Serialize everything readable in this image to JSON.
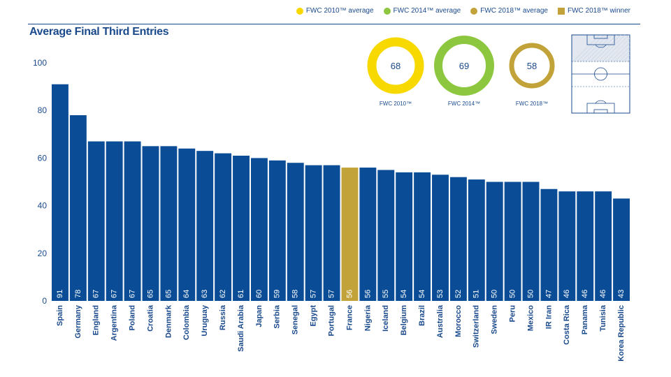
{
  "legend": [
    {
      "label": "FWC 2010™ average",
      "color": "#f7d900",
      "shape": "circle"
    },
    {
      "label": "FWC 2014™ average",
      "color": "#8dc63f",
      "shape": "circle"
    },
    {
      "label": "FWC 2018™ average",
      "color": "#c2a33a",
      "shape": "circle"
    },
    {
      "label": "FWC 2018™ winner",
      "color": "#c2a33a",
      "shape": "square"
    }
  ],
  "rings": [
    {
      "value": "68",
      "label": "FWC 2010™",
      "color": "#f7d900"
    },
    {
      "value": "69",
      "label": "FWC 2014™",
      "color": "#8dc63f"
    },
    {
      "value": "58",
      "label": "FWC 2018™",
      "color": "#c2a33a"
    }
  ],
  "colors": {
    "bar": "#0a4d96",
    "winner": "#c2a33a",
    "text": "#1a4a8c"
  },
  "chart_data": {
    "type": "bar",
    "title": "Average Final Third Entries",
    "categories": [
      "Spain",
      "Germany",
      "England",
      "Argentina",
      "Poland",
      "Croatia",
      "Denmark",
      "Colombia",
      "Uruguay",
      "Russia",
      "Saudi Arabia",
      "Japan",
      "Serbia",
      "Senegal",
      "Egypt",
      "Portugal",
      "France",
      "Nigeria",
      "Iceland",
      "Belgium",
      "Brazil",
      "Australia",
      "Morocco",
      "Switzerland",
      "Sweden",
      "Peru",
      "Mexico",
      "IR Iran",
      "Costa Rica",
      "Panama",
      "Tunisia",
      "Korea Republic"
    ],
    "values": [
      91,
      78,
      67,
      67,
      67,
      65,
      65,
      64,
      63,
      62,
      61,
      60,
      59,
      58,
      57,
      57,
      56,
      56,
      55,
      54,
      54,
      53,
      52,
      51,
      50,
      50,
      50,
      47,
      46,
      46,
      46,
      43
    ],
    "highlight": "France",
    "ylim": [
      0,
      100
    ],
    "yticks": [
      0,
      20,
      40,
      60,
      80,
      100
    ],
    "xlabel": "",
    "ylabel": "",
    "grid": false
  }
}
